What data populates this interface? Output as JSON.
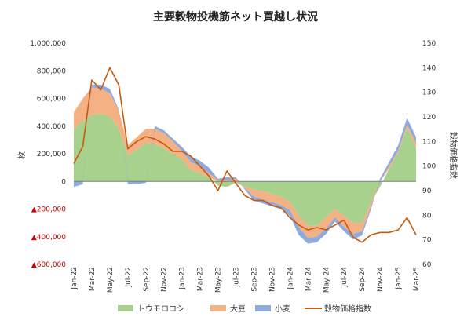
{
  "chart_data": {
    "type": "area",
    "title": "主要穀物投機筋ネット買越し状況",
    "ylabel_left": "枚",
    "ylabel_right": "穀物価格指数",
    "ylim_left": [
      -600000,
      1000000
    ],
    "ylim_right": [
      60,
      150
    ],
    "yticks_left": [
      {
        "value": 1000000,
        "label": "1,000,000",
        "negative": false
      },
      {
        "value": 800000,
        "label": "800,000",
        "negative": false
      },
      {
        "value": 600000,
        "label": "600,000",
        "negative": false
      },
      {
        "value": 400000,
        "label": "400,000",
        "negative": false
      },
      {
        "value": 200000,
        "label": "200,000",
        "negative": false
      },
      {
        "value": 0,
        "label": "0",
        "negative": false
      },
      {
        "value": -200000,
        "label": "▲200,000",
        "negative": true
      },
      {
        "value": -400000,
        "label": "▲400,000",
        "negative": true
      },
      {
        "value": -600000,
        "label": "▲600,000",
        "negative": true
      }
    ],
    "yticks_right": [
      150,
      140,
      130,
      120,
      110,
      100,
      90,
      80,
      70,
      60
    ],
    "x_start": "2022-01",
    "x_end": "2025-03",
    "xtick_labels": [
      "Jan-22",
      "Mar-22",
      "May-22",
      "Jul-22",
      "Sep-22",
      "Nov-22",
      "Jan-23",
      "Mar-23",
      "May-23",
      "Jul-23",
      "Sep-23",
      "Nov-23",
      "Jan-24",
      "Mar-24",
      "May-24",
      "Jul-24",
      "Sep-24",
      "Nov-24",
      "Jan-25",
      "Mar-25"
    ],
    "legend_position": "bottom",
    "x": [
      "2022-01",
      "2022-02",
      "2022-03",
      "2022-04",
      "2022-05",
      "2022-06",
      "2022-07",
      "2022-08",
      "2022-09",
      "2022-10",
      "2022-11",
      "2022-12",
      "2023-01",
      "2023-02",
      "2023-03",
      "2023-04",
      "2023-05",
      "2023-06",
      "2023-07",
      "2023-08",
      "2023-09",
      "2023-10",
      "2023-11",
      "2023-12",
      "2024-01",
      "2024-02",
      "2024-03",
      "2024-04",
      "2024-05",
      "2024-06",
      "2024-07",
      "2024-08",
      "2024-09",
      "2024-10",
      "2024-11",
      "2024-12",
      "2025-01",
      "2025-02",
      "2025-03"
    ],
    "series": [
      {
        "name": "トウモロコシ",
        "kind": "area",
        "axis": "left",
        "color": "#a9d18e",
        "values": [
          380000,
          440000,
          480000,
          490000,
          470000,
          380000,
          190000,
          230000,
          280000,
          270000,
          240000,
          200000,
          160000,
          80000,
          60000,
          30000,
          -30000,
          -40000,
          -10000,
          -40000,
          -60000,
          -70000,
          -90000,
          -110000,
          -150000,
          -250000,
          -320000,
          -320000,
          -260000,
          -200000,
          -250000,
          -300000,
          -300000,
          -150000,
          -40000,
          90000,
          210000,
          390000,
          240000
        ]
      },
      {
        "name": "大豆",
        "kind": "area",
        "axis": "left",
        "color": "#f4b183",
        "values": [
          120000,
          160000,
          200000,
          180000,
          170000,
          130000,
          70000,
          90000,
          100000,
          110000,
          110000,
          90000,
          60000,
          60000,
          50000,
          30000,
          10000,
          10000,
          20000,
          -10000,
          -50000,
          -60000,
          -60000,
          -60000,
          -60000,
          -80000,
          -90000,
          -80000,
          -80000,
          -60000,
          -80000,
          -80000,
          -60000,
          -30000,
          0,
          20000,
          10000,
          20000,
          40000
        ]
      },
      {
        "name": "小麦",
        "kind": "area",
        "axis": "left",
        "color": "#8faadc",
        "values": [
          -40000,
          -20000,
          20000,
          30000,
          30000,
          10000,
          -20000,
          -20000,
          -10000,
          20000,
          20000,
          20000,
          30000,
          40000,
          40000,
          40000,
          10000,
          20000,
          10000,
          -10000,
          -30000,
          -30000,
          -30000,
          -30000,
          -40000,
          -60000,
          -40000,
          -40000,
          -40000,
          -30000,
          -30000,
          -40000,
          -30000,
          -20000,
          20000,
          30000,
          40000,
          50000,
          40000
        ]
      },
      {
        "name": "穀物価格指数",
        "kind": "line",
        "axis": "right",
        "color": "#c55a11",
        "values": [
          101,
          108,
          135,
          131,
          140,
          133,
          107,
          110,
          112,
          111,
          109,
          106,
          106,
          104,
          100,
          96,
          90,
          98,
          93,
          88,
          86,
          86,
          84,
          83,
          79,
          76,
          74,
          75,
          74,
          76,
          78,
          71,
          69,
          72,
          73,
          73,
          74,
          79,
          72
        ]
      }
    ]
  }
}
